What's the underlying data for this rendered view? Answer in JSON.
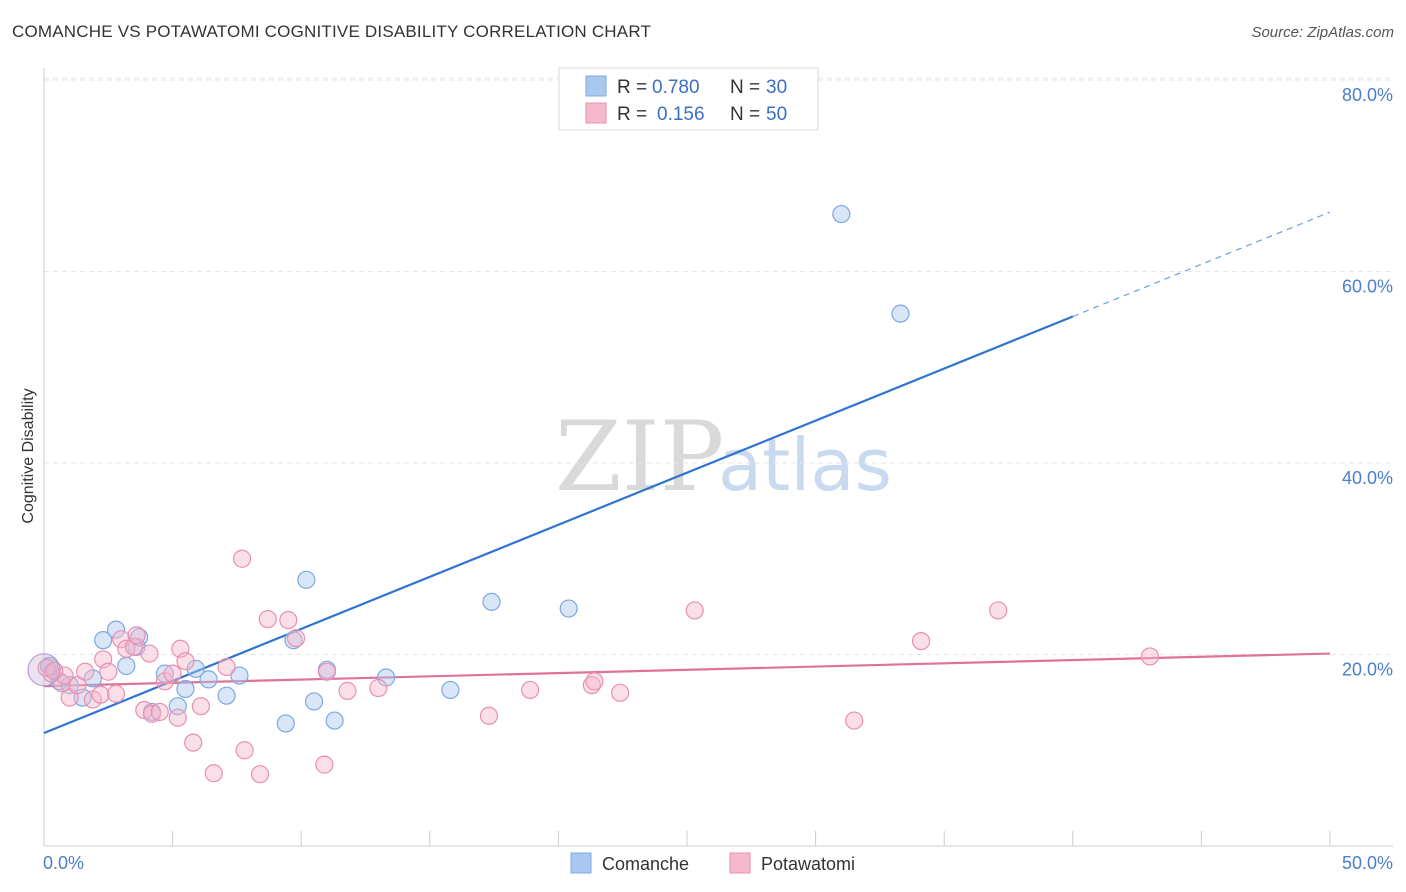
{
  "title": "COMANCHE VS POTAWATOMI COGNITIVE DISABILITY CORRELATION CHART",
  "source": "Source: ZipAtlas.com",
  "watermark": {
    "part1": "ZIP",
    "part2": "atlas"
  },
  "chart_data": {
    "type": "scatter",
    "xlabel": "",
    "ylabel": "Cognitive Disability",
    "xlim": [
      0,
      50
    ],
    "ylim": [
      0,
      80
    ],
    "x_tick_labels": [
      "0.0%",
      "50.0%"
    ],
    "y_ticks": [
      20,
      40,
      60,
      80
    ],
    "y_tick_labels": [
      "20.0%",
      "40.0%",
      "60.0%",
      "80.0%"
    ],
    "grid": true,
    "legend_position": "top-center",
    "colors": {
      "comanche": "#a9c8ef",
      "comanche_line": "#2f74d0",
      "potawatomi": "#f6b8cb",
      "potawatomi_line": "#e0729a"
    },
    "legend": [
      {
        "name": "Comanche",
        "r_label": "R =",
        "r_value": "0.780",
        "n_label": "N =",
        "n_value": "30"
      },
      {
        "name": "Potawatomi",
        "r_label": "R =",
        "r_value": "0.156",
        "n_label": "N =",
        "n_value": "50"
      }
    ],
    "series": [
      {
        "name": "Comanche",
        "points": [
          [
            0.2,
            18.8
          ],
          [
            0.6,
            17.2
          ],
          [
            1.0,
            16.8
          ],
          [
            1.5,
            15.5
          ],
          [
            1.9,
            17.5
          ],
          [
            2.3,
            21.5
          ],
          [
            2.8,
            22.6
          ],
          [
            3.2,
            18.8
          ],
          [
            3.6,
            20.8
          ],
          [
            3.7,
            21.8
          ],
          [
            4.2,
            14.0
          ],
          [
            4.7,
            18.0
          ],
          [
            5.2,
            14.6
          ],
          [
            5.5,
            16.4
          ],
          [
            5.9,
            18.5
          ],
          [
            6.4,
            17.4
          ],
          [
            7.1,
            15.7
          ],
          [
            7.6,
            17.8
          ],
          [
            9.4,
            12.8
          ],
          [
            9.7,
            21.5
          ],
          [
            10.2,
            27.8
          ],
          [
            10.5,
            15.1
          ],
          [
            11.0,
            18.4
          ],
          [
            11.3,
            13.1
          ],
          [
            13.3,
            17.6
          ],
          [
            15.8,
            16.3
          ],
          [
            17.4,
            25.5
          ],
          [
            20.4,
            24.8
          ],
          [
            31.0,
            66.0
          ],
          [
            33.3,
            55.6
          ]
        ],
        "trend": {
          "x1": 0,
          "y1": 11.8,
          "x2": 40.0,
          "y2": 55.3,
          "dash_to_x": 50,
          "dash_to_y": 66.2
        }
      },
      {
        "name": "Potawatomi",
        "points": [
          [
            0.3,
            18.0
          ],
          [
            0.7,
            17.0
          ],
          [
            0.8,
            17.8
          ],
          [
            1.0,
            15.5
          ],
          [
            1.3,
            16.8
          ],
          [
            1.6,
            18.2
          ],
          [
            1.9,
            15.3
          ],
          [
            2.2,
            15.8
          ],
          [
            2.3,
            19.5
          ],
          [
            2.5,
            18.2
          ],
          [
            2.8,
            15.9
          ],
          [
            3.0,
            21.6
          ],
          [
            3.2,
            20.6
          ],
          [
            3.5,
            20.8
          ],
          [
            3.6,
            22.0
          ],
          [
            3.9,
            14.2
          ],
          [
            4.1,
            20.1
          ],
          [
            4.2,
            13.8
          ],
          [
            4.5,
            14.0
          ],
          [
            4.7,
            17.2
          ],
          [
            5.0,
            18.0
          ],
          [
            5.2,
            13.4
          ],
          [
            5.3,
            20.6
          ],
          [
            5.5,
            19.3
          ],
          [
            5.8,
            10.8
          ],
          [
            6.1,
            14.6
          ],
          [
            6.6,
            7.6
          ],
          [
            7.1,
            18.7
          ],
          [
            7.7,
            30.0
          ],
          [
            7.8,
            10.0
          ],
          [
            8.4,
            7.5
          ],
          [
            8.7,
            23.7
          ],
          [
            9.5,
            23.6
          ],
          [
            9.8,
            21.7
          ],
          [
            10.9,
            8.5
          ],
          [
            11.0,
            18.2
          ],
          [
            11.8,
            16.2
          ],
          [
            13.0,
            16.5
          ],
          [
            17.3,
            13.6
          ],
          [
            18.9,
            16.3
          ],
          [
            21.3,
            16.8
          ],
          [
            21.4,
            17.2
          ],
          [
            22.4,
            16.0
          ],
          [
            25.3,
            24.6
          ],
          [
            31.5,
            13.1
          ],
          [
            34.1,
            21.4
          ],
          [
            37.1,
            24.6
          ],
          [
            43.0,
            19.8
          ],
          [
            0.1,
            18.6
          ],
          [
            0.4,
            18.3
          ]
        ],
        "trend": {
          "x1": 0,
          "y1": 16.7,
          "x2": 50,
          "y2": 20.1
        }
      }
    ]
  }
}
